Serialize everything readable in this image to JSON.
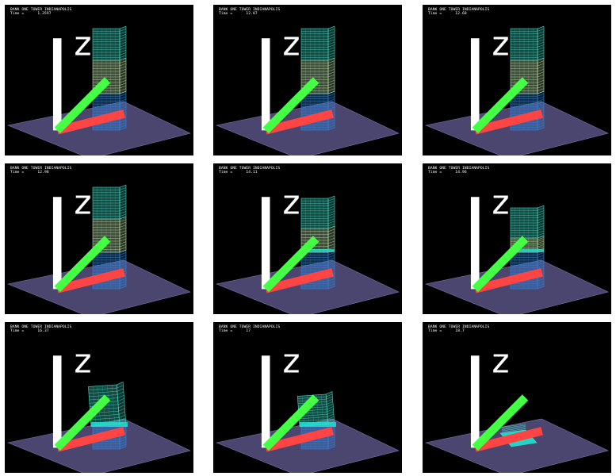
{
  "figure": {
    "frames": [
      {
        "title": "BANK ONE TOWER INDIANAPOLIS",
        "time_label": "Time =",
        "time_value": "1.3597",
        "state": "intact"
      },
      {
        "title": "BANK ONE TOWER INDIANAPOLIS",
        "time_label": "Time =",
        "time_value": "12.87",
        "state": "intact"
      },
      {
        "title": "BANK ONE TOWER INDIANAPOLIS",
        "time_label": "Time =",
        "time_value": "12.68",
        "state": "intact"
      },
      {
        "title": "BANK ONE TOWER INDIANAPOLIS",
        "time_label": "Time =",
        "time_value": "12.98",
        "state": "intact"
      },
      {
        "title": "BANK ONE TOWER INDIANAPOLIS",
        "time_label": "Time =",
        "time_value": "14.11",
        "state": "sagging"
      },
      {
        "title": "BANK ONE TOWER INDIANAPOLIS",
        "time_label": "Time =",
        "time_value": "14.96",
        "state": "sagging"
      },
      {
        "title": "BANK ONE TOWER INDIANAPOLIS",
        "time_label": "Time =",
        "time_value": "16.37",
        "state": "collapsing"
      },
      {
        "title": "BANK ONE TOWER INDIANAPOLIS",
        "time_label": "Time =",
        "time_value": "17",
        "state": "collapsing"
      },
      {
        "title": "BANK ONE TOWER INDIANAPOLIS",
        "time_label": "Time =",
        "time_value": "18.7",
        "state": "collapsed"
      }
    ]
  },
  "colors": {
    "background": "#000000",
    "ground": "#4a4670",
    "ground_edge": "#7a74a8",
    "upper_floors": "#3fd7c0",
    "mid_floors": "#b8e0a8",
    "lower_floors": "#2f86dc",
    "debris": "#22e0d0"
  },
  "icons": {
    "axis_triad": "xyz-axis-triad-icon"
  }
}
